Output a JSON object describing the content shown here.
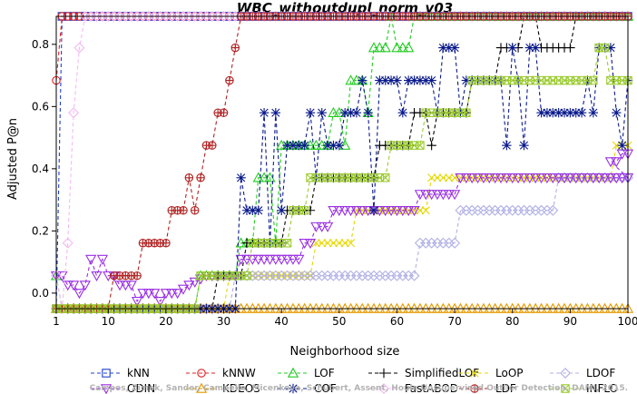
{
  "chart_data": {
    "type": "line",
    "title": "WBC_withoutdupl_norm_v03",
    "xlabel": "Neighborhood size",
    "ylabel": "Adjusted P@n",
    "xlim": [
      1,
      100
    ],
    "ylim": [
      -0.05,
      0.89
    ],
    "xticks": [
      1,
      10,
      20,
      30,
      40,
      50,
      60,
      70,
      80,
      90,
      100
    ],
    "yticks": [
      0.0,
      0.2,
      0.4,
      0.6,
      0.8
    ],
    "legend_position": "bottom",
    "watermark": "Campos, Zimek, Sander, Campello, Micenkova, Schubert, Assent, Houle Unsupervised Outlier Detection. DAMI, 2015.",
    "series": [
      {
        "name": "kNN",
        "color": "#1f3fcf",
        "marker": "square",
        "points": [
          [
            1,
            -0.05
          ],
          [
            2,
            0.89
          ],
          [
            100,
            0.89
          ]
        ]
      },
      {
        "name": "kNNW",
        "color": "#e02020",
        "marker": "circle",
        "points": [
          [
            1,
            0.684
          ],
          [
            2,
            0.89
          ],
          [
            100,
            0.89
          ]
        ]
      },
      {
        "name": "LOF",
        "color": "#22cc22",
        "marker": "triangle-up",
        "points": [
          [
            1,
            0.056
          ],
          [
            2,
            -0.05
          ],
          [
            25,
            -0.05
          ],
          [
            26,
            0.056
          ],
          [
            32,
            0.056
          ],
          [
            33,
            0.161
          ],
          [
            35,
            0.161
          ],
          [
            36,
            0.371
          ],
          [
            38,
            0.371
          ],
          [
            39,
            0.161
          ],
          [
            40,
            0.475
          ],
          [
            48,
            0.475
          ],
          [
            49,
            0.58
          ],
          [
            50,
            0.58
          ],
          [
            51,
            0.475
          ],
          [
            52,
            0.684
          ],
          [
            54,
            0.684
          ],
          [
            55,
            0.58
          ],
          [
            56,
            0.789
          ],
          [
            58,
            0.789
          ],
          [
            59,
            0.89
          ],
          [
            60,
            0.789
          ],
          [
            62,
            0.789
          ],
          [
            63,
            0.89
          ],
          [
            100,
            0.89
          ]
        ]
      },
      {
        "name": "SimplifiedLOF",
        "color": "#000000",
        "marker": "plus",
        "points": [
          [
            1,
            -0.05
          ],
          [
            28,
            -0.05
          ],
          [
            29,
            0.056
          ],
          [
            33,
            0.056
          ],
          [
            34,
            0.161
          ],
          [
            40,
            0.161
          ],
          [
            41,
            0.266
          ],
          [
            45,
            0.266
          ],
          [
            46,
            0.371
          ],
          [
            56,
            0.371
          ],
          [
            57,
            0.475
          ],
          [
            62,
            0.475
          ],
          [
            63,
            0.58
          ],
          [
            65,
            0.58
          ],
          [
            66,
            0.475
          ],
          [
            67,
            0.58
          ],
          [
            72,
            0.58
          ],
          [
            73,
            0.684
          ],
          [
            77,
            0.684
          ],
          [
            78,
            0.789
          ],
          [
            81,
            0.789
          ],
          [
            82,
            0.89
          ],
          [
            84,
            0.89
          ],
          [
            85,
            0.789
          ],
          [
            90,
            0.789
          ],
          [
            91,
            0.89
          ],
          [
            100,
            0.89
          ]
        ]
      },
      {
        "name": "LoOP",
        "color": "#e6d800",
        "marker": "x",
        "points": [
          [
            1,
            -0.05
          ],
          [
            30,
            -0.05
          ],
          [
            31,
            0.056
          ],
          [
            45,
            0.056
          ],
          [
            46,
            0.161
          ],
          [
            52,
            0.161
          ],
          [
            53,
            0.266
          ],
          [
            65,
            0.266
          ],
          [
            66,
            0.371
          ],
          [
            97,
            0.371
          ],
          [
            98,
            0.475
          ],
          [
            100,
            0.475
          ]
        ]
      },
      {
        "name": "LDOF",
        "color": "#b0b0e6",
        "marker": "diamond",
        "points": [
          [
            1,
            -0.05
          ],
          [
            31,
            -0.05
          ],
          [
            32,
            0.056
          ],
          [
            63,
            0.056
          ],
          [
            64,
            0.161
          ],
          [
            70,
            0.161
          ],
          [
            71,
            0.266
          ],
          [
            82,
            0.266
          ],
          [
            83,
            0.266
          ],
          [
            87,
            0.266
          ],
          [
            88,
            0.371
          ],
          [
            100,
            0.371
          ]
        ]
      },
      {
        "name": "ODIN",
        "color": "#9a2ee6",
        "marker": "triangle-down",
        "points": [
          [
            1,
            0.056
          ],
          [
            2,
            0.056
          ],
          [
            3,
            0.026
          ],
          [
            4,
            0.026
          ],
          [
            5,
            0.0
          ],
          [
            6,
            0.026
          ],
          [
            7,
            0.109
          ],
          [
            8,
            0.056
          ],
          [
            9,
            0.109
          ],
          [
            10,
            0.056
          ],
          [
            11,
            0.056
          ],
          [
            12,
            0.026
          ],
          [
            14,
            0.026
          ],
          [
            15,
            -0.026
          ],
          [
            16,
            0.0
          ],
          [
            18,
            0.0
          ],
          [
            19,
            -0.026
          ],
          [
            20,
            0.0
          ],
          [
            22,
            0.0
          ],
          [
            24,
            0.026
          ],
          [
            27,
            0.056
          ],
          [
            32,
            0.056
          ],
          [
            33,
            0.109
          ],
          [
            43,
            0.109
          ],
          [
            44,
            0.161
          ],
          [
            45,
            0.161
          ],
          [
            46,
            0.214
          ],
          [
            48,
            0.214
          ],
          [
            49,
            0.266
          ],
          [
            63,
            0.266
          ],
          [
            64,
            0.318
          ],
          [
            70,
            0.318
          ],
          [
            71,
            0.371
          ],
          [
            100,
            0.371
          ],
          [
            97,
            0.423
          ],
          [
            98,
            0.423
          ],
          [
            99,
            0.448
          ],
          [
            100,
            0.448
          ]
        ]
      },
      {
        "name": "KDEOS",
        "color": "#e69a00",
        "marker": "triangle-up",
        "points": [
          [
            1,
            -0.05
          ],
          [
            100,
            -0.05
          ]
        ]
      },
      {
        "name": "COF",
        "color": "#0a1a8c",
        "marker": "asterisk",
        "points": [
          [
            1,
            -0.05
          ],
          [
            32,
            -0.05
          ],
          [
            33,
            0.371
          ],
          [
            34,
            0.266
          ],
          [
            36,
            0.266
          ],
          [
            37,
            0.58
          ],
          [
            38,
            0.161
          ],
          [
            39,
            0.58
          ],
          [
            40,
            0.266
          ],
          [
            41,
            0.475
          ],
          [
            44,
            0.475
          ],
          [
            45,
            0.58
          ],
          [
            46,
            0.371
          ],
          [
            47,
            0.58
          ],
          [
            48,
            0.475
          ],
          [
            50,
            0.475
          ],
          [
            51,
            0.58
          ],
          [
            53,
            0.58
          ],
          [
            54,
            0.684
          ],
          [
            55,
            0.58
          ],
          [
            56,
            0.266
          ],
          [
            57,
            0.684
          ],
          [
            60,
            0.684
          ],
          [
            61,
            0.58
          ],
          [
            62,
            0.684
          ],
          [
            66,
            0.684
          ],
          [
            67,
            0.58
          ],
          [
            68,
            0.789
          ],
          [
            70,
            0.789
          ],
          [
            71,
            0.58
          ],
          [
            72,
            0.684
          ],
          [
            78,
            0.684
          ],
          [
            79,
            0.475
          ],
          [
            80,
            0.789
          ],
          [
            81,
            0.684
          ],
          [
            82,
            0.475
          ],
          [
            83,
            0.789
          ],
          [
            84,
            0.789
          ],
          [
            85,
            0.58
          ],
          [
            92,
            0.58
          ],
          [
            93,
            0.684
          ],
          [
            94,
            0.58
          ],
          [
            95,
            0.789
          ],
          [
            97,
            0.789
          ],
          [
            98,
            0.58
          ],
          [
            99,
            0.475
          ],
          [
            100,
            0.684
          ]
        ]
      },
      {
        "name": "FastABOD",
        "color": "#f4b8f4",
        "marker": "diamond",
        "points": [
          [
            1,
            0.056
          ],
          [
            2,
            -0.05
          ],
          [
            3,
            0.161
          ],
          [
            4,
            0.58
          ],
          [
            5,
            0.789
          ],
          [
            6,
            0.89
          ],
          [
            100,
            0.89
          ]
        ]
      },
      {
        "name": "LDF",
        "color": "#b02020",
        "marker": "circle-plus",
        "points": [
          [
            1,
            -0.05
          ],
          [
            10,
            -0.05
          ],
          [
            11,
            0.056
          ],
          [
            15,
            0.056
          ],
          [
            16,
            0.161
          ],
          [
            20,
            0.161
          ],
          [
            21,
            0.266
          ],
          [
            23,
            0.266
          ],
          [
            24,
            0.371
          ],
          [
            25,
            0.266
          ],
          [
            26,
            0.371
          ],
          [
            27,
            0.475
          ],
          [
            28,
            0.475
          ],
          [
            29,
            0.58
          ],
          [
            30,
            0.58
          ],
          [
            31,
            0.684
          ],
          [
            32,
            0.789
          ],
          [
            33,
            0.89
          ],
          [
            100,
            0.89
          ]
        ]
      },
      {
        "name": "INFLO",
        "color": "#9ccc30",
        "marker": "x-square",
        "points": [
          [
            1,
            -0.05
          ],
          [
            25,
            -0.05
          ],
          [
            26,
            0.056
          ],
          [
            34,
            0.056
          ],
          [
            35,
            0.161
          ],
          [
            41,
            0.161
          ],
          [
            42,
            0.266
          ],
          [
            44,
            0.266
          ],
          [
            45,
            0.371
          ],
          [
            58,
            0.371
          ],
          [
            59,
            0.475
          ],
          [
            64,
            0.475
          ],
          [
            65,
            0.58
          ],
          [
            72,
            0.58
          ],
          [
            73,
            0.684
          ],
          [
            94,
            0.684
          ],
          [
            95,
            0.789
          ],
          [
            96,
            0.789
          ],
          [
            97,
            0.684
          ],
          [
            100,
            0.684
          ]
        ]
      }
    ]
  }
}
